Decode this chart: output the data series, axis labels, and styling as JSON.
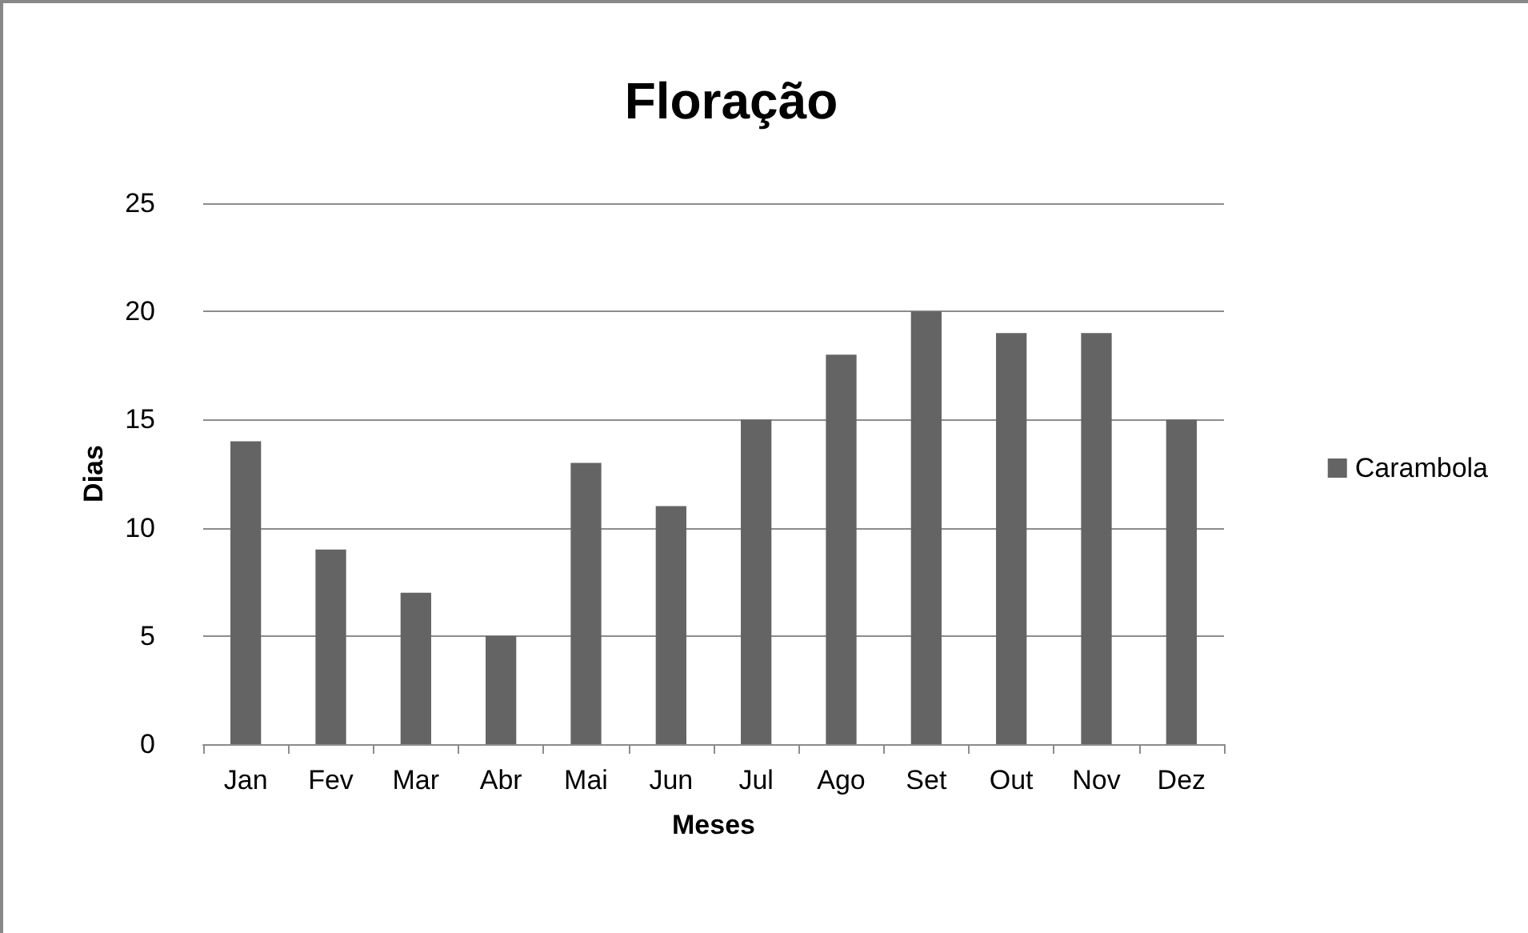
{
  "chart_data": {
    "type": "bar",
    "title": "Floração",
    "xlabel": "Meses",
    "ylabel": "Dias",
    "categories": [
      "Jan",
      "Fev",
      "Mar",
      "Abr",
      "Mai",
      "Jun",
      "Jul",
      "Ago",
      "Set",
      "Out",
      "Nov",
      "Dez"
    ],
    "series": [
      {
        "name": "Carambola",
        "color": "#646464",
        "values": [
          14,
          9,
          7,
          5,
          13,
          11,
          15,
          18,
          20,
          19,
          19,
          15
        ]
      }
    ],
    "ylim": [
      0,
      25
    ],
    "yticks": [
      0,
      5,
      10,
      15,
      20,
      25
    ],
    "grid": "y",
    "legend": "right"
  }
}
